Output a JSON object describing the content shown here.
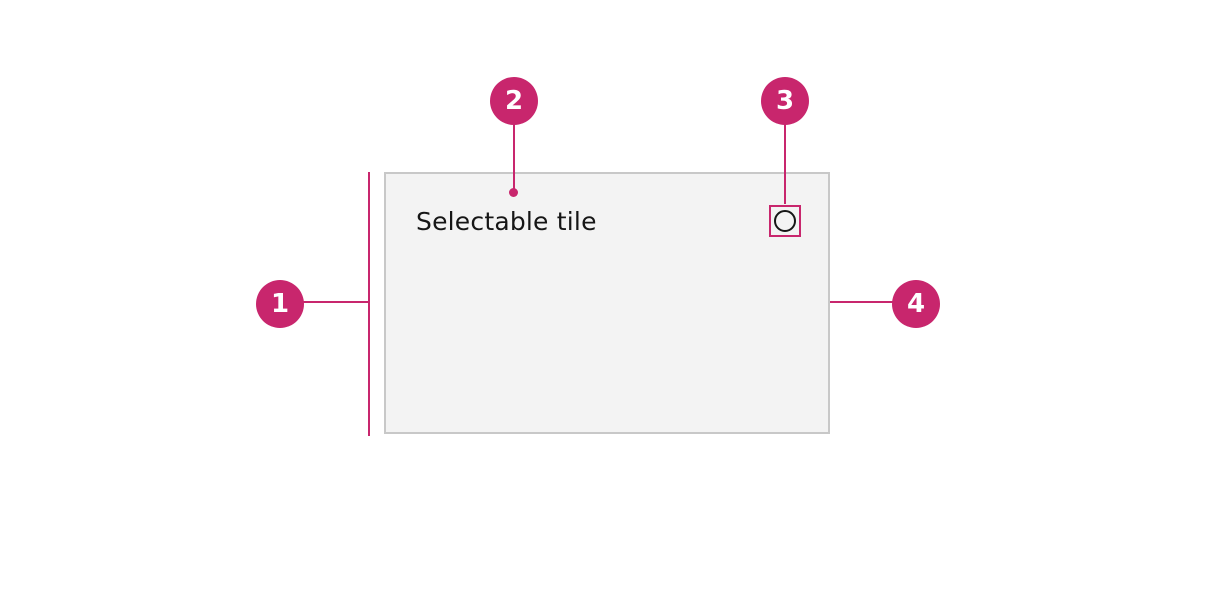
{
  "tile": {
    "title": "Selectable tile"
  },
  "callouts": [
    {
      "label": "1"
    },
    {
      "label": "2"
    },
    {
      "label": "3"
    },
    {
      "label": "4"
    }
  ],
  "colors": {
    "accent": "#c8266d",
    "tile_background": "#f3f3f3",
    "tile_border": "#c8c8c8",
    "text": "#161616"
  }
}
